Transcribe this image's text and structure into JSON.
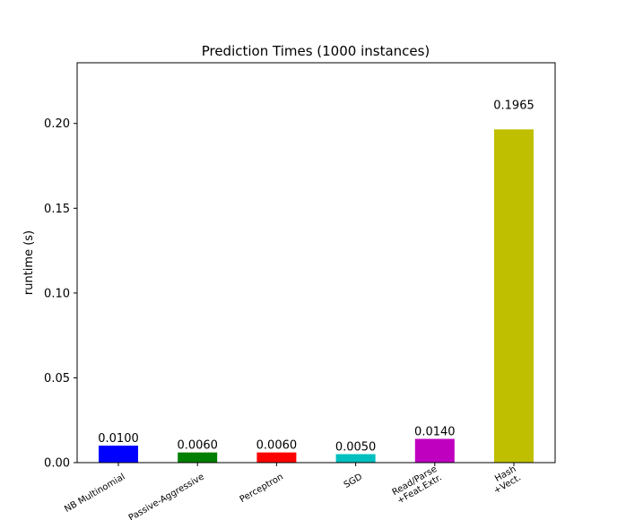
{
  "chart_data": {
    "type": "bar",
    "title": "Prediction Times (1000 instances)",
    "xlabel": "",
    "ylabel": "runtime (s)",
    "ylim": [
      0,
      0.2358
    ],
    "yticks": [
      "0.00",
      "0.05",
      "0.10",
      "0.15",
      "0.20"
    ],
    "ytick_values": [
      0,
      0.05,
      0.1,
      0.15,
      0.2
    ],
    "grid": false,
    "categories": [
      [
        "NB Multinomial"
      ],
      [
        "Passive-Aggressive"
      ],
      [
        "Perceptron"
      ],
      [
        "SGD"
      ],
      [
        "Read/Parse",
        "+Feat.Extr."
      ],
      [
        "Hash",
        "+Vect."
      ]
    ],
    "values": [
      0.01,
      0.006,
      0.006,
      0.005,
      0.014,
      0.1965
    ],
    "value_labels": [
      "0.0100",
      "0.0060",
      "0.0060",
      "0.0050",
      "0.0140",
      "0.1965"
    ],
    "colors": [
      "#0000ff",
      "#008000",
      "#ff0000",
      "#00bfbf",
      "#bf00bf",
      "#bfbf00"
    ]
  }
}
